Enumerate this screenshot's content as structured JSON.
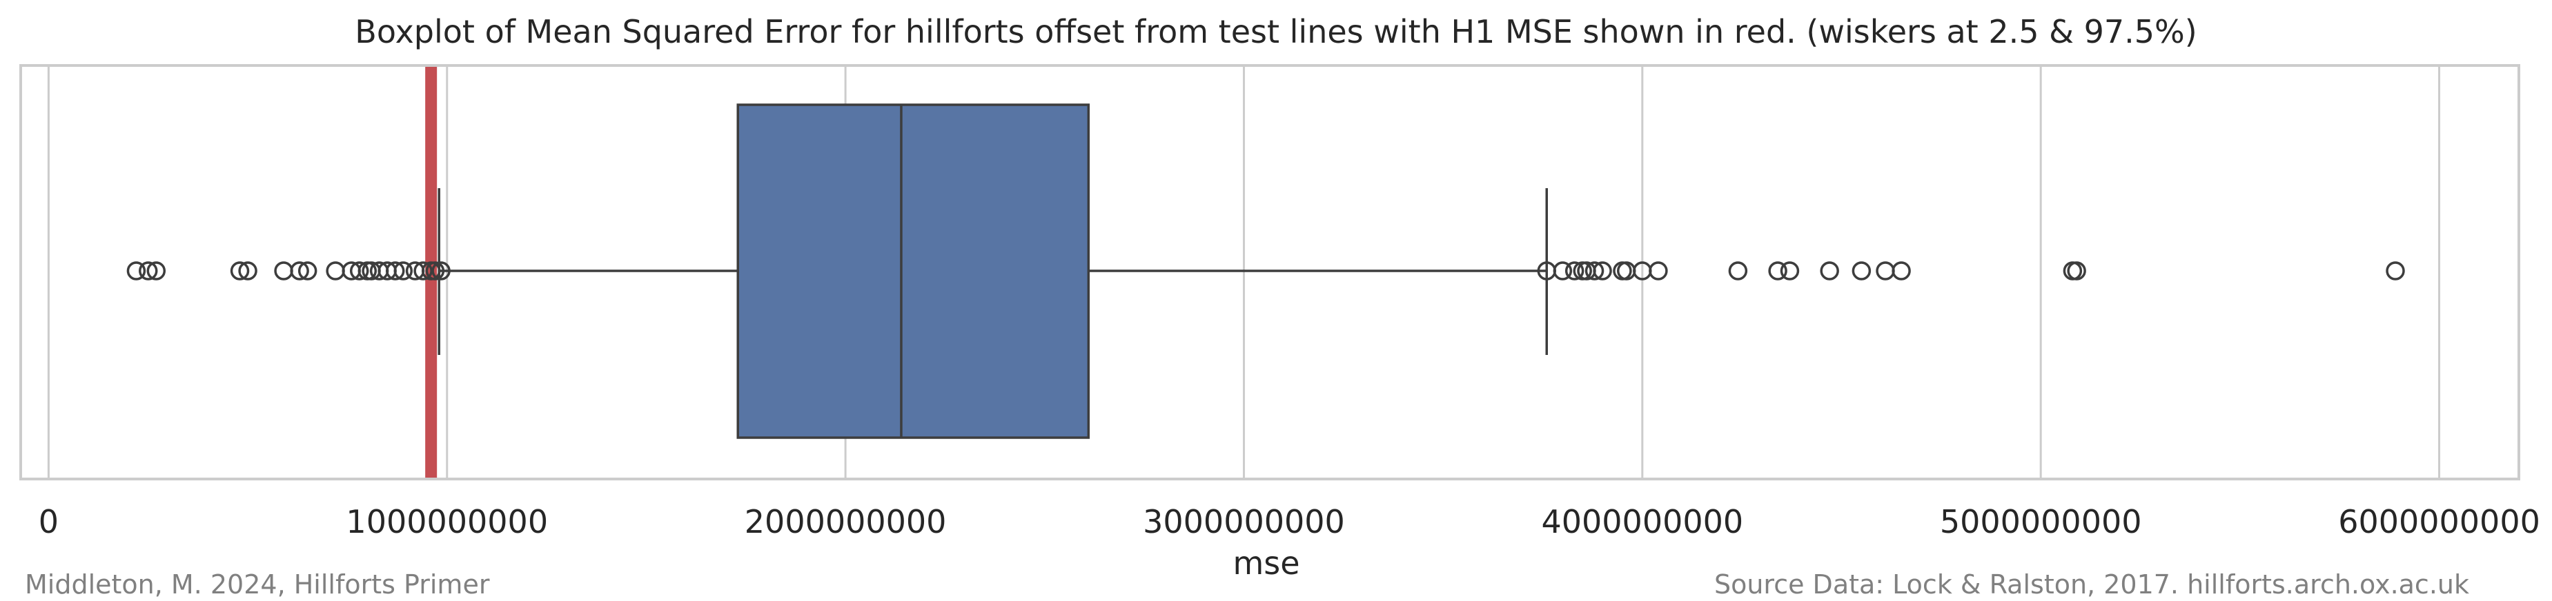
{
  "chart_data": {
    "type": "boxplot",
    "title": "Boxplot of Mean Squared Error for hillforts offset from test lines with H1 MSE shown in red. (wiskers at 2.5 & 97.5%)",
    "xlabel": "mse",
    "ylabel": "",
    "xlim": [
      -70000000,
      6200000000
    ],
    "xticks": [
      0,
      1000000000,
      2000000000,
      3000000000,
      4000000000,
      5000000000,
      6000000000
    ],
    "xtick_labels": [
      "0",
      "1000000000",
      "2000000000",
      "3000000000",
      "4000000000",
      "5000000000",
      "6000000000"
    ],
    "grid": true,
    "box": {
      "whisker_low": 980000000,
      "q1": 1730000000,
      "median": 2140000000,
      "q3": 2610000000,
      "whisker_high": 3760000000
    },
    "outliers": [
      220000000,
      250000000,
      270000000,
      480000000,
      500000000,
      590000000,
      630000000,
      650000000,
      720000000,
      760000000,
      780000000,
      800000000,
      810000000,
      830000000,
      850000000,
      870000000,
      890000000,
      920000000,
      940000000,
      960000000,
      970000000,
      985000000,
      3760000000,
      3800000000,
      3830000000,
      3850000000,
      3860000000,
      3880000000,
      3900000000,
      3950000000,
      3960000000,
      4000000000,
      4040000000,
      4240000000,
      4340000000,
      4370000000,
      4470000000,
      4550000000,
      4610000000,
      4650000000,
      5080000000,
      5090000000,
      5890000000
    ],
    "h1_mse": 960000000,
    "colors": {
      "box": "#5875a4",
      "box_edge": "#3d3d3d",
      "h1_line": "#c44e52",
      "grid": "#cccccc",
      "frame": "#cccccc",
      "text": "#262626"
    }
  },
  "footer": {
    "left": "Middleton, M. 2024, Hillforts Primer",
    "right": "Source Data: Lock & Ralston, 2017. hillforts.arch.ox.ac.uk"
  }
}
